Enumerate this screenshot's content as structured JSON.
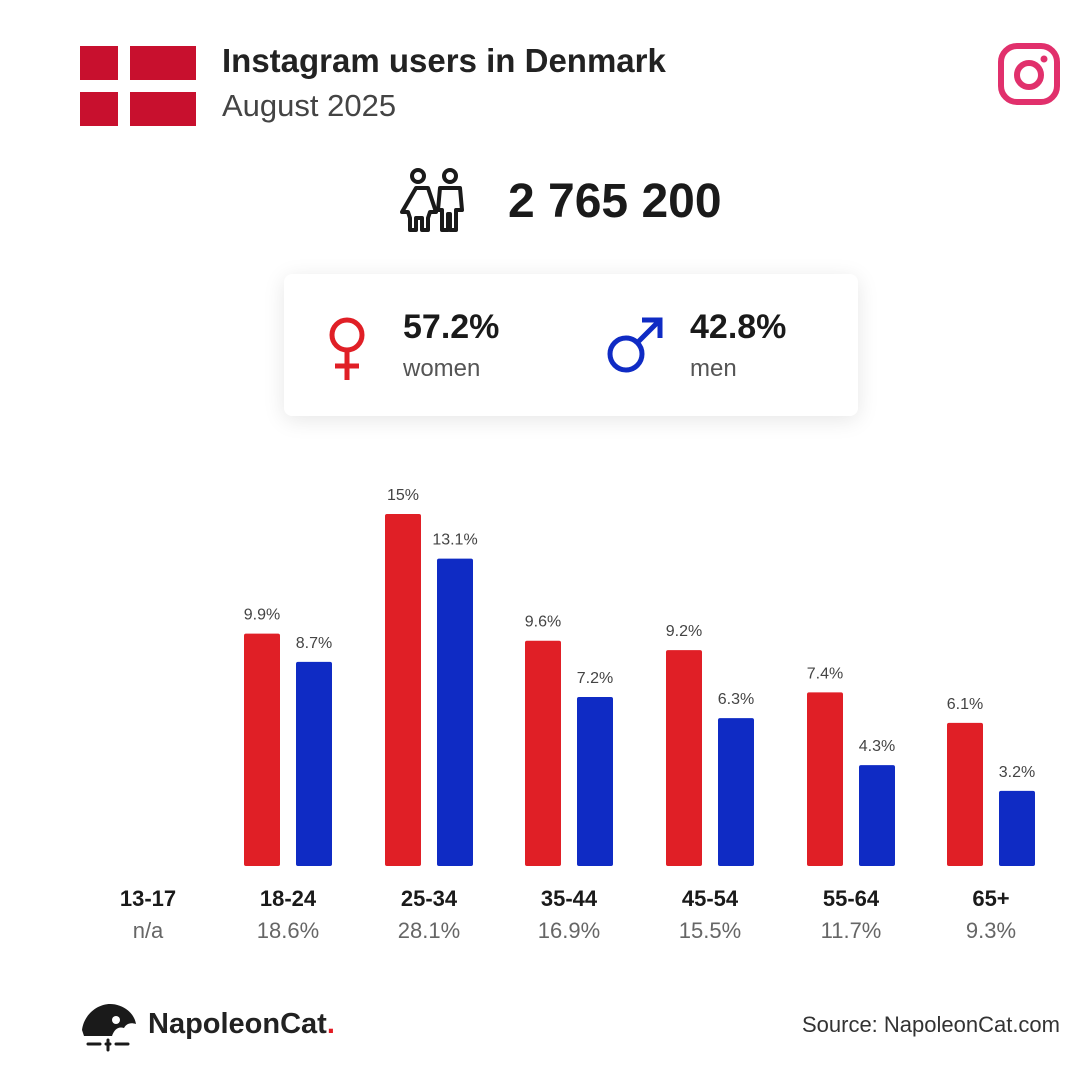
{
  "header": {
    "title": "Instagram users in Denmark",
    "subtitle": "August 2025"
  },
  "total_users": "2 765 200",
  "gender": {
    "women": {
      "percent": "57.2%",
      "label": "women"
    },
    "men": {
      "percent": "42.8%",
      "label": "men"
    }
  },
  "colors": {
    "women": "#e01f26",
    "men": "#0f2bc4",
    "flag_red": "#c8102e",
    "instagram": "#e1306c"
  },
  "icons": {
    "flag": "denmark-flag-icon",
    "platform": "instagram-icon",
    "total": "people-icon",
    "women": "female-symbol-icon",
    "men": "male-symbol-icon",
    "brand": "napoleoncat-logo-icon"
  },
  "chart_data": {
    "type": "bar",
    "categories": [
      "13-17",
      "18-24",
      "25-34",
      "35-44",
      "45-54",
      "55-64",
      "65+"
    ],
    "category_totals": [
      "n/a",
      "18.6%",
      "28.1%",
      "16.9%",
      "15.5%",
      "11.7%",
      "9.3%"
    ],
    "series": [
      {
        "values": [
          null,
          9.9,
          15,
          9.6,
          9.2,
          7.4,
          6.1
        ],
        "labels": [
          "",
          "9.9%",
          "15%",
          "9.6%",
          "9.2%",
          "7.4%",
          "6.1%"
        ]
      },
      {
        "values": [
          null,
          8.7,
          13.1,
          7.2,
          6.3,
          4.3,
          3.2
        ],
        "labels": [
          "",
          "8.7%",
          "13.1%",
          "7.2%",
          "6.3%",
          "4.3%",
          "3.2%"
        ]
      }
    ],
    "ylim": [
      0,
      15
    ],
    "grid": false
  },
  "footer": {
    "brand": "NapoleonCat",
    "brand_dot": ".",
    "source": "Source: NapoleonCat.com"
  }
}
